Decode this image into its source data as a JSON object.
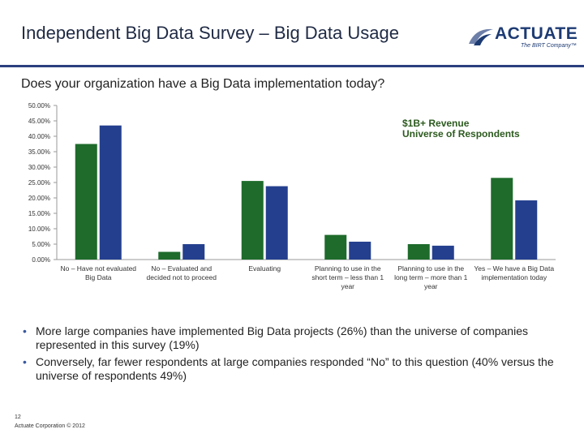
{
  "header": {
    "title": "Independent Big Data Survey – Big Data Usage",
    "logo_word": "ACTUATE",
    "logo_tag": "The BIRT Company™"
  },
  "question": "Does your organization have a Big Data implementation today?",
  "chart_data": {
    "type": "bar",
    "categories": [
      [
        "No – Have not evaluated",
        "Big Data"
      ],
      [
        "No – Evaluated and",
        "decided not to proceed"
      ],
      [
        "Evaluating"
      ],
      [
        "Planning to use in the",
        "short term – less than 1",
        "year"
      ],
      [
        "Planning to use in the",
        "long term – more than 1",
        "year"
      ],
      [
        "Yes – We have a Big Data",
        "implementation today"
      ]
    ],
    "series": [
      {
        "name": "$1B+ Revenue",
        "color": "#1e6b2b",
        "values": [
          37.5,
          2.5,
          25.5,
          8.0,
          5.0,
          26.5
        ]
      },
      {
        "name": "Universe of Respondents",
        "color": "#243f8e",
        "values": [
          43.5,
          5.0,
          23.8,
          5.8,
          4.5,
          19.2
        ]
      }
    ],
    "yticks": [
      "0.00%",
      "5.00%",
      "10.00%",
      "15.00%",
      "20.00%",
      "25.00%",
      "30.00%",
      "35.00%",
      "40.00%",
      "45.00%",
      "50.00%"
    ],
    "ylim": [
      0,
      50
    ],
    "grid": false,
    "legend_position": "top-right",
    "legend_text_color": "#2c5a1e"
  },
  "bullets": [
    "More large companies have implemented Big Data projects (26%) than the universe of companies represented in this survey (19%)",
    "Conversely, far fewer respondents at large companies responded “No” to this question (40% versus the universe of respondents 49%)"
  ],
  "footer": {
    "page": "12",
    "copyright": "Actuate Corporation © 2012"
  }
}
